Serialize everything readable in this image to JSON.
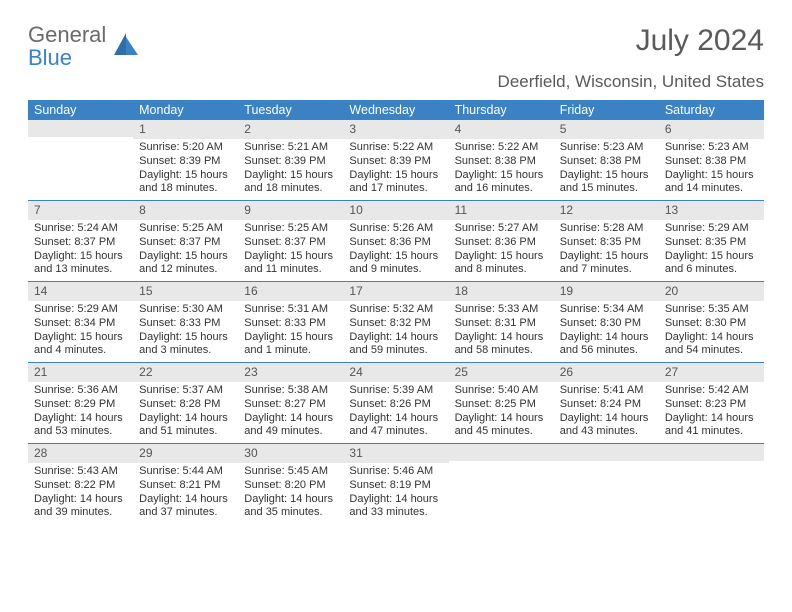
{
  "brand": {
    "part1": "General",
    "part2": "Blue"
  },
  "title": "July 2024",
  "location": "Deerfield, Wisconsin, United States",
  "colors": {
    "header_bg": "#3b82c4",
    "header_text": "#ffffff",
    "daynum_bg": "#e8e8e8",
    "body_text": "#333333",
    "title_text": "#5a5a5a",
    "week_border": "#3b82c4"
  },
  "typography": {
    "title_fontsize": 30,
    "location_fontsize": 17,
    "dayhead_fontsize": 12.5,
    "cell_fontsize": 11
  },
  "day_headers": [
    "Sunday",
    "Monday",
    "Tuesday",
    "Wednesday",
    "Thursday",
    "Friday",
    "Saturday"
  ],
  "weeks": [
    [
      {
        "num": "",
        "sunrise": "",
        "sunset": "",
        "daylight": ""
      },
      {
        "num": "1",
        "sunrise": "Sunrise: 5:20 AM",
        "sunset": "Sunset: 8:39 PM",
        "daylight": "Daylight: 15 hours and 18 minutes."
      },
      {
        "num": "2",
        "sunrise": "Sunrise: 5:21 AM",
        "sunset": "Sunset: 8:39 PM",
        "daylight": "Daylight: 15 hours and 18 minutes."
      },
      {
        "num": "3",
        "sunrise": "Sunrise: 5:22 AM",
        "sunset": "Sunset: 8:39 PM",
        "daylight": "Daylight: 15 hours and 17 minutes."
      },
      {
        "num": "4",
        "sunrise": "Sunrise: 5:22 AM",
        "sunset": "Sunset: 8:38 PM",
        "daylight": "Daylight: 15 hours and 16 minutes."
      },
      {
        "num": "5",
        "sunrise": "Sunrise: 5:23 AM",
        "sunset": "Sunset: 8:38 PM",
        "daylight": "Daylight: 15 hours and 15 minutes."
      },
      {
        "num": "6",
        "sunrise": "Sunrise: 5:23 AM",
        "sunset": "Sunset: 8:38 PM",
        "daylight": "Daylight: 15 hours and 14 minutes."
      }
    ],
    [
      {
        "num": "7",
        "sunrise": "Sunrise: 5:24 AM",
        "sunset": "Sunset: 8:37 PM",
        "daylight": "Daylight: 15 hours and 13 minutes."
      },
      {
        "num": "8",
        "sunrise": "Sunrise: 5:25 AM",
        "sunset": "Sunset: 8:37 PM",
        "daylight": "Daylight: 15 hours and 12 minutes."
      },
      {
        "num": "9",
        "sunrise": "Sunrise: 5:25 AM",
        "sunset": "Sunset: 8:37 PM",
        "daylight": "Daylight: 15 hours and 11 minutes."
      },
      {
        "num": "10",
        "sunrise": "Sunrise: 5:26 AM",
        "sunset": "Sunset: 8:36 PM",
        "daylight": "Daylight: 15 hours and 9 minutes."
      },
      {
        "num": "11",
        "sunrise": "Sunrise: 5:27 AM",
        "sunset": "Sunset: 8:36 PM",
        "daylight": "Daylight: 15 hours and 8 minutes."
      },
      {
        "num": "12",
        "sunrise": "Sunrise: 5:28 AM",
        "sunset": "Sunset: 8:35 PM",
        "daylight": "Daylight: 15 hours and 7 minutes."
      },
      {
        "num": "13",
        "sunrise": "Sunrise: 5:29 AM",
        "sunset": "Sunset: 8:35 PM",
        "daylight": "Daylight: 15 hours and 6 minutes."
      }
    ],
    [
      {
        "num": "14",
        "sunrise": "Sunrise: 5:29 AM",
        "sunset": "Sunset: 8:34 PM",
        "daylight": "Daylight: 15 hours and 4 minutes."
      },
      {
        "num": "15",
        "sunrise": "Sunrise: 5:30 AM",
        "sunset": "Sunset: 8:33 PM",
        "daylight": "Daylight: 15 hours and 3 minutes."
      },
      {
        "num": "16",
        "sunrise": "Sunrise: 5:31 AM",
        "sunset": "Sunset: 8:33 PM",
        "daylight": "Daylight: 15 hours and 1 minute."
      },
      {
        "num": "17",
        "sunrise": "Sunrise: 5:32 AM",
        "sunset": "Sunset: 8:32 PM",
        "daylight": "Daylight: 14 hours and 59 minutes."
      },
      {
        "num": "18",
        "sunrise": "Sunrise: 5:33 AM",
        "sunset": "Sunset: 8:31 PM",
        "daylight": "Daylight: 14 hours and 58 minutes."
      },
      {
        "num": "19",
        "sunrise": "Sunrise: 5:34 AM",
        "sunset": "Sunset: 8:30 PM",
        "daylight": "Daylight: 14 hours and 56 minutes."
      },
      {
        "num": "20",
        "sunrise": "Sunrise: 5:35 AM",
        "sunset": "Sunset: 8:30 PM",
        "daylight": "Daylight: 14 hours and 54 minutes."
      }
    ],
    [
      {
        "num": "21",
        "sunrise": "Sunrise: 5:36 AM",
        "sunset": "Sunset: 8:29 PM",
        "daylight": "Daylight: 14 hours and 53 minutes."
      },
      {
        "num": "22",
        "sunrise": "Sunrise: 5:37 AM",
        "sunset": "Sunset: 8:28 PM",
        "daylight": "Daylight: 14 hours and 51 minutes."
      },
      {
        "num": "23",
        "sunrise": "Sunrise: 5:38 AM",
        "sunset": "Sunset: 8:27 PM",
        "daylight": "Daylight: 14 hours and 49 minutes."
      },
      {
        "num": "24",
        "sunrise": "Sunrise: 5:39 AM",
        "sunset": "Sunset: 8:26 PM",
        "daylight": "Daylight: 14 hours and 47 minutes."
      },
      {
        "num": "25",
        "sunrise": "Sunrise: 5:40 AM",
        "sunset": "Sunset: 8:25 PM",
        "daylight": "Daylight: 14 hours and 45 minutes."
      },
      {
        "num": "26",
        "sunrise": "Sunrise: 5:41 AM",
        "sunset": "Sunset: 8:24 PM",
        "daylight": "Daylight: 14 hours and 43 minutes."
      },
      {
        "num": "27",
        "sunrise": "Sunrise: 5:42 AM",
        "sunset": "Sunset: 8:23 PM",
        "daylight": "Daylight: 14 hours and 41 minutes."
      }
    ],
    [
      {
        "num": "28",
        "sunrise": "Sunrise: 5:43 AM",
        "sunset": "Sunset: 8:22 PM",
        "daylight": "Daylight: 14 hours and 39 minutes."
      },
      {
        "num": "29",
        "sunrise": "Sunrise: 5:44 AM",
        "sunset": "Sunset: 8:21 PM",
        "daylight": "Daylight: 14 hours and 37 minutes."
      },
      {
        "num": "30",
        "sunrise": "Sunrise: 5:45 AM",
        "sunset": "Sunset: 8:20 PM",
        "daylight": "Daylight: 14 hours and 35 minutes."
      },
      {
        "num": "31",
        "sunrise": "Sunrise: 5:46 AM",
        "sunset": "Sunset: 8:19 PM",
        "daylight": "Daylight: 14 hours and 33 minutes."
      },
      {
        "num": "",
        "sunrise": "",
        "sunset": "",
        "daylight": ""
      },
      {
        "num": "",
        "sunrise": "",
        "sunset": "",
        "daylight": ""
      },
      {
        "num": "",
        "sunrise": "",
        "sunset": "",
        "daylight": ""
      }
    ]
  ]
}
